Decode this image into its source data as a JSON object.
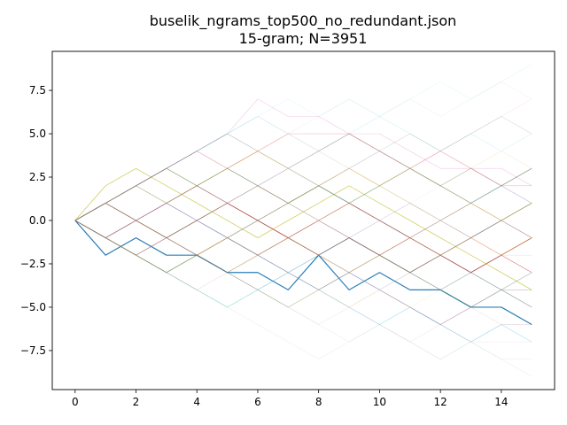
{
  "chart_data": {
    "type": "line",
    "title_line1": "buselik_ngrams_top500_no_redundant.json",
    "title_line2": "15-gram; N=3951",
    "xlabel": "",
    "ylabel": "",
    "xlim": [
      -0.75,
      15.75
    ],
    "ylim": [
      -9.75,
      9.75
    ],
    "xticks": [
      0,
      2,
      4,
      6,
      8,
      10,
      12,
      14
    ],
    "xtick_labels": [
      "0",
      "2",
      "4",
      "6",
      "8",
      "10",
      "12",
      "14"
    ],
    "yticks": [
      -7.5,
      -5.0,
      -2.5,
      0.0,
      2.5,
      5.0,
      7.5
    ],
    "ytick_labels": [
      "−7.5",
      "−5.0",
      "−2.5",
      "0.0",
      "2.5",
      "5.0",
      "7.5"
    ],
    "grid": false,
    "legend": "none",
    "x": [
      0,
      1,
      2,
      3,
      4,
      5,
      6,
      7,
      8,
      9,
      10,
      11,
      12,
      13,
      14,
      15
    ],
    "series": [
      {
        "color": "#1f77b4",
        "opacity": 0.95,
        "width": 1.2,
        "values": [
          0,
          -2,
          -1,
          -2,
          -2,
          -3,
          -3,
          -4,
          -2,
          -4,
          -3,
          -4,
          -4,
          -5,
          -5,
          -6
        ]
      },
      {
        "color": "#8c564b",
        "opacity": 0.85,
        "width": 0.8,
        "values": [
          0,
          1,
          0,
          -1,
          0,
          1,
          0,
          -1,
          -2,
          -1,
          -2,
          -3,
          -2,
          -3,
          -2,
          -1
        ]
      },
      {
        "color": "#bcbd22",
        "opacity": 0.7,
        "width": 0.8,
        "values": [
          0,
          2,
          3,
          2,
          1,
          0,
          -1,
          0,
          1,
          2,
          1,
          0,
          -1,
          -2,
          -3,
          -4
        ]
      },
      {
        "color": "#7f7f7f",
        "opacity": 0.7,
        "width": 0.8,
        "values": [
          0,
          -1,
          -2,
          -3,
          -2,
          -1,
          0,
          1,
          2,
          1,
          0,
          -1,
          -2,
          -1,
          0,
          1
        ]
      },
      {
        "color": "#2ca02c",
        "opacity": 0.55,
        "width": 0.7,
        "values": [
          0,
          1,
          2,
          3,
          2,
          3,
          2,
          1,
          2,
          1,
          2,
          3,
          2,
          1,
          2,
          3
        ]
      },
      {
        "color": "#d62728",
        "opacity": 0.55,
        "width": 0.7,
        "values": [
          0,
          -1,
          0,
          1,
          2,
          1,
          0,
          -1,
          0,
          1,
          0,
          -1,
          -2,
          -3,
          -2,
          -3
        ]
      },
      {
        "color": "#9467bd",
        "opacity": 0.5,
        "width": 0.7,
        "values": [
          0,
          1,
          0,
          1,
          0,
          -1,
          -2,
          -3,
          -4,
          -3,
          -4,
          -5,
          -6,
          -5,
          -4,
          -5
        ]
      },
      {
        "color": "#ff7f0e",
        "opacity": 0.5,
        "width": 0.7,
        "values": [
          0,
          -1,
          -2,
          -1,
          -2,
          -1,
          -2,
          -1,
          -2,
          -3,
          -2,
          -1,
          -2,
          -1,
          -2,
          -1
        ]
      },
      {
        "color": "#e377c2",
        "opacity": 0.35,
        "width": 0.7,
        "values": [
          0,
          1,
          2,
          3,
          4,
          5,
          7,
          6,
          6,
          5,
          5,
          4,
          3,
          3,
          3,
          2
        ]
      },
      {
        "color": "#17becf",
        "opacity": 0.35,
        "width": 0.7,
        "values": [
          0,
          -1,
          -2,
          -3,
          -4,
          -5,
          -4,
          -3,
          -4,
          -5,
          -6,
          -5,
          -6,
          -7,
          -6,
          -7
        ]
      },
      {
        "color": "#7f7f7f",
        "opacity": 0.45,
        "width": 0.7,
        "values": [
          0,
          1,
          2,
          3,
          4,
          5,
          4,
          3,
          4,
          5,
          4,
          3,
          2,
          3,
          2,
          3
        ]
      },
      {
        "color": "#8c564b",
        "opacity": 0.45,
        "width": 0.7,
        "values": [
          0,
          -1,
          0,
          -1,
          -2,
          -3,
          -2,
          -1,
          0,
          -1,
          -2,
          -1,
          0,
          -1,
          0,
          -1
        ]
      },
      {
        "color": "#bcbd22",
        "opacity": 0.45,
        "width": 0.7,
        "values": [
          0,
          1,
          2,
          1,
          2,
          3,
          4,
          3,
          2,
          3,
          2,
          1,
          0,
          1,
          0,
          1
        ]
      },
      {
        "color": "#1f77b4",
        "opacity": 0.35,
        "width": 0.7,
        "values": [
          0,
          -1,
          -2,
          -1,
          0,
          -1,
          -2,
          -3,
          -2,
          -1,
          -2,
          -3,
          -4,
          -3,
          -4,
          -3
        ]
      },
      {
        "color": "#9467bd",
        "opacity": 0.3,
        "width": 0.7,
        "values": [
          0,
          1,
          0,
          1,
          2,
          1,
          2,
          1,
          0,
          -1,
          0,
          1,
          0,
          1,
          2,
          1
        ]
      },
      {
        "color": "#2ca02c",
        "opacity": 0.3,
        "width": 0.7,
        "values": [
          0,
          -1,
          -2,
          -3,
          -2,
          -3,
          -4,
          -5,
          -4,
          -3,
          -2,
          -3,
          -4,
          -5,
          -4,
          -5
        ]
      },
      {
        "color": "#d62728",
        "opacity": 0.3,
        "width": 0.7,
        "values": [
          0,
          1,
          2,
          3,
          4,
          3,
          4,
          5,
          5,
          5,
          4,
          3,
          4,
          3,
          2,
          2
        ]
      },
      {
        "color": "#7f7f7f",
        "opacity": 0.3,
        "width": 0.7,
        "values": [
          0,
          -1,
          0,
          1,
          0,
          -1,
          -2,
          -1,
          -2,
          -3,
          -4,
          -3,
          -2,
          -3,
          -4,
          -4
        ]
      },
      {
        "color": "#17becf",
        "opacity": 0.2,
        "width": 0.6,
        "values": [
          0,
          1,
          2,
          3,
          4,
          5,
          6,
          5,
          4,
          5,
          6,
          5,
          4,
          5,
          4,
          5
        ]
      },
      {
        "color": "#e377c2",
        "opacity": 0.2,
        "width": 0.6,
        "values": [
          0,
          -1,
          -2,
          -3,
          -4,
          -3,
          -4,
          -5,
          -6,
          -5,
          -6,
          -7,
          -6,
          -7,
          -7,
          -7
        ]
      },
      {
        "color": "#bcbd22",
        "opacity": 0.2,
        "width": 0.6,
        "values": [
          0,
          1,
          0,
          -1,
          -2,
          -1,
          0,
          1,
          0,
          1,
          2,
          3,
          2,
          3,
          4,
          3
        ]
      },
      {
        "color": "#8c564b",
        "opacity": 0.25,
        "width": 0.6,
        "values": [
          0,
          -1,
          0,
          1,
          2,
          3,
          2,
          1,
          0,
          1,
          0,
          -1,
          0,
          1,
          0,
          -1
        ]
      },
      {
        "color": "#ff7f0e",
        "opacity": 0.25,
        "width": 0.6,
        "values": [
          0,
          1,
          0,
          -1,
          0,
          1,
          2,
          1,
          2,
          3,
          2,
          3,
          2,
          1,
          0,
          1
        ]
      },
      {
        "color": "#9467bd",
        "opacity": 0.2,
        "width": 0.6,
        "values": [
          0,
          -1,
          -2,
          -1,
          -2,
          -3,
          -4,
          -3,
          -4,
          -3,
          -2,
          -1,
          -2,
          -1,
          -2,
          -2
        ]
      },
      {
        "color": "#17becf",
        "opacity": 0.12,
        "width": 0.6,
        "values": [
          0,
          1,
          2,
          3,
          4,
          5,
          6,
          7,
          6,
          7,
          6,
          7,
          8,
          7,
          8,
          9
        ]
      },
      {
        "color": "#7f7f7f",
        "opacity": 0.12,
        "width": 0.6,
        "values": [
          0,
          -1,
          -2,
          -3,
          -4,
          -5,
          -6,
          -7,
          -8,
          -7,
          -6,
          -7,
          -8,
          -7,
          -8,
          -8
        ]
      },
      {
        "color": "#2ca02c",
        "opacity": 0.15,
        "width": 0.6,
        "values": [
          0,
          1,
          2,
          1,
          2,
          1,
          2,
          3,
          4,
          3,
          4,
          5,
          4,
          5,
          6,
          5
        ]
      },
      {
        "color": "#d62728",
        "opacity": 0.15,
        "width": 0.6,
        "values": [
          0,
          -1,
          -2,
          -1,
          -2,
          -3,
          -4,
          -5,
          -4,
          -5,
          -4,
          -5,
          -6,
          -5,
          -6,
          -6
        ]
      },
      {
        "color": "#1f77b4",
        "opacity": 0.15,
        "width": 0.6,
        "values": [
          0,
          1,
          2,
          1,
          0,
          1,
          2,
          3,
          2,
          3,
          4,
          3,
          2,
          1,
          2,
          1
        ]
      },
      {
        "color": "#e377c2",
        "opacity": 0.18,
        "width": 0.6,
        "values": [
          0,
          -1,
          0,
          1,
          0,
          1,
          2,
          3,
          2,
          1,
          2,
          3,
          4,
          3,
          2,
          3
        ]
      },
      {
        "color": "#bcbd22",
        "opacity": 0.15,
        "width": 0.6,
        "values": [
          0,
          -1,
          -2,
          -3,
          -2,
          -3,
          -2,
          -3,
          -4,
          -5,
          -4,
          -5,
          -4,
          -3,
          -4,
          -3
        ]
      },
      {
        "color": "#8c564b",
        "opacity": 0.15,
        "width": 0.6,
        "values": [
          0,
          1,
          2,
          3,
          2,
          1,
          0,
          -1,
          -2,
          -1,
          -2,
          -3,
          -4,
          -3,
          -4,
          -4
        ]
      },
      {
        "color": "#9467bd",
        "opacity": 0.15,
        "width": 0.6,
        "values": [
          0,
          1,
          2,
          3,
          4,
          3,
          2,
          3,
          2,
          3,
          4,
          5,
          4,
          5,
          6,
          5
        ]
      },
      {
        "color": "#ff7f0e",
        "opacity": 0.12,
        "width": 0.6,
        "values": [
          0,
          -1,
          -2,
          -3,
          -4,
          -3,
          -2,
          -1,
          0,
          -1,
          -2,
          -3,
          -4,
          -5,
          -4,
          -3
        ]
      },
      {
        "color": "#7f7f7f",
        "opacity": 0.1,
        "width": 0.6,
        "values": [
          0,
          1,
          2,
          3,
          4,
          5,
          6,
          5,
          6,
          7,
          6,
          7,
          6,
          7,
          8,
          7
        ]
      },
      {
        "color": "#2ca02c",
        "opacity": 0.1,
        "width": 0.6,
        "values": [
          0,
          -1,
          -2,
          -3,
          -4,
          -5,
          -4,
          -5,
          -6,
          -7,
          -6,
          -7,
          -8,
          -7,
          -8,
          -9
        ]
      },
      {
        "color": "#17becf",
        "opacity": 0.1,
        "width": 0.6,
        "values": [
          0,
          1,
          0,
          -1,
          -2,
          -3,
          -4,
          -3,
          -2,
          -1,
          0,
          -1,
          -2,
          -1,
          0,
          1
        ]
      },
      {
        "color": "#d62728",
        "opacity": 0.1,
        "width": 0.6,
        "values": [
          0,
          1,
          2,
          3,
          2,
          3,
          4,
          5,
          4,
          5,
          4,
          3,
          4,
          5,
          6,
          7
        ]
      },
      {
        "color": "#1f77b4",
        "opacity": 0.1,
        "width": 0.6,
        "values": [
          0,
          -1,
          0,
          -1,
          -2,
          -1,
          -2,
          -3,
          -2,
          -3,
          -4,
          -5,
          -6,
          -7,
          -6,
          -6
        ]
      },
      {
        "color": "#e377c2",
        "opacity": 0.1,
        "width": 0.6,
        "values": [
          0,
          1,
          2,
          1,
          2,
          3,
          2,
          3,
          4,
          3,
          2,
          1,
          2,
          1,
          0,
          -1
        ]
      }
    ]
  }
}
